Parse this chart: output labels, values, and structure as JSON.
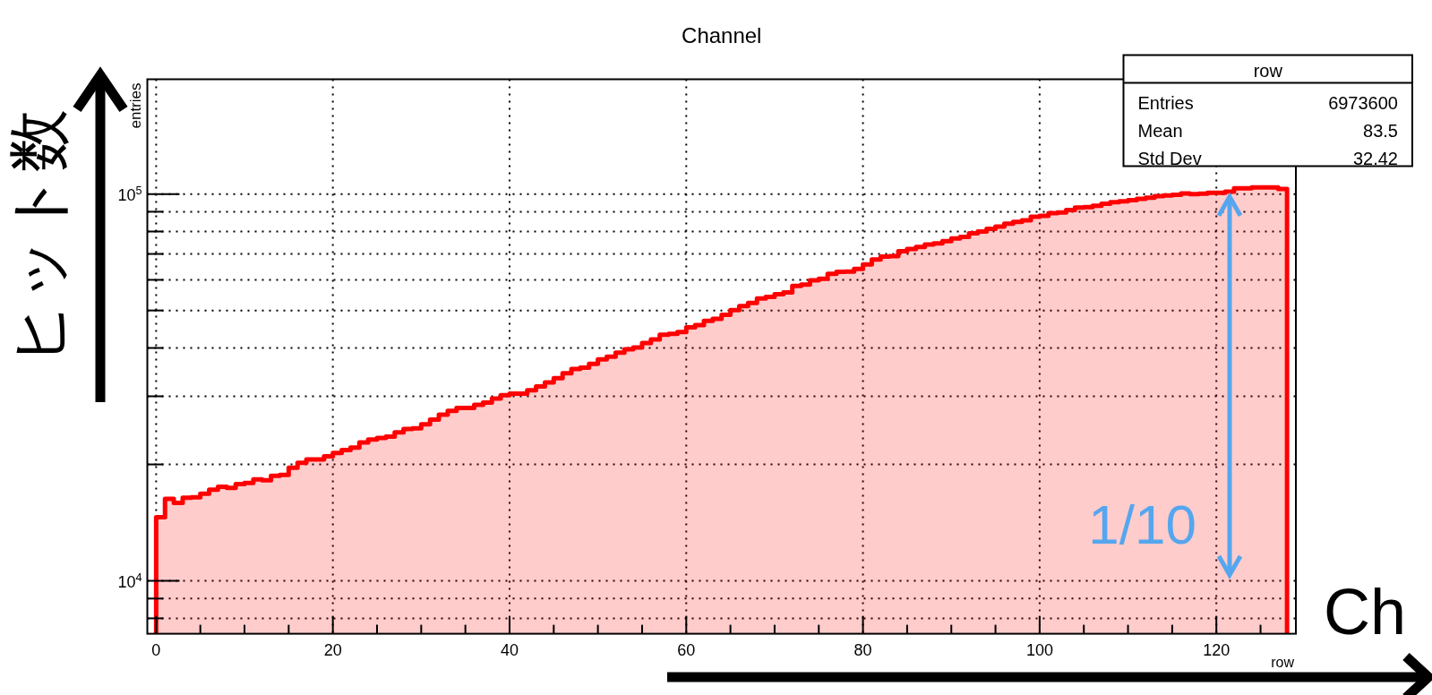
{
  "chart_data": {
    "type": "histogram",
    "title": "Channel",
    "xlabel": "row",
    "ylabel": "entries",
    "color": "#ff0000",
    "log": true,
    "grid": true,
    "bins": [
      0,
      1,
      2,
      3,
      4,
      5,
      6,
      7,
      8,
      9,
      10,
      11,
      12,
      13,
      14,
      15,
      16,
      17,
      18,
      19,
      20,
      21,
      22,
      23,
      24,
      25,
      26,
      27,
      28,
      29,
      30,
      31,
      32,
      33,
      34,
      35,
      36,
      37,
      38,
      39,
      40,
      41,
      42,
      43,
      44,
      45,
      46,
      47,
      48,
      49,
      50,
      51,
      52,
      53,
      54,
      55,
      56,
      57,
      58,
      59,
      60,
      61,
      62,
      63,
      64,
      65,
      66,
      67,
      68,
      69,
      70,
      71,
      72,
      73,
      74,
      75,
      76,
      77,
      78,
      79,
      80,
      81,
      82,
      83,
      84,
      85,
      86,
      87,
      88,
      89,
      90,
      91,
      92,
      93,
      94,
      95,
      96,
      97,
      98,
      99,
      100,
      101,
      102,
      103,
      104,
      105,
      106,
      107,
      108,
      109,
      110,
      111,
      112,
      113,
      114,
      115,
      116,
      117,
      118,
      119,
      120,
      121,
      122,
      123,
      124,
      125,
      126,
      127,
      128
    ],
    "values": [
      14600,
      16300,
      15900,
      16400,
      16450,
      16800,
      17200,
      17500,
      17400,
      17800,
      17900,
      18300,
      18200,
      18700,
      18800,
      19600,
      20200,
      20600,
      20600,
      21000,
      21400,
      21800,
      22100,
      22800,
      23200,
      23400,
      23600,
      24200,
      24700,
      24800,
      25400,
      26100,
      26900,
      27500,
      28000,
      28000,
      28500,
      28900,
      29600,
      30200,
      30500,
      30500,
      31100,
      31800,
      32600,
      33400,
      34400,
      35300,
      35600,
      36400,
      37400,
      38000,
      38900,
      39700,
      40100,
      41200,
      42100,
      43300,
      43500,
      44000,
      45200,
      45800,
      47000,
      47600,
      48700,
      50100,
      51300,
      52300,
      53700,
      54200,
      55100,
      55700,
      57900,
      58300,
      59800,
      60400,
      62200,
      62900,
      63000,
      64000,
      65800,
      67700,
      68900,
      69100,
      71100,
      72100,
      73000,
      74000,
      74500,
      75500,
      76800,
      77500,
      79100,
      80000,
      81300,
      82400,
      83800,
      84700,
      85500,
      87300,
      87800,
      89200,
      89600,
      90900,
      92300,
      92500,
      93200,
      94400,
      95200,
      95800,
      96400,
      97200,
      97800,
      98800,
      99200,
      99600,
      100400,
      100000,
      100200,
      100800,
      100800,
      101400,
      103400,
      103400,
      104000,
      104000,
      104000,
      103000
    ],
    "xlim": [
      -1,
      129
    ],
    "ylim": [
      7300,
      198000
    ],
    "xticks": [
      0,
      {
        "value": 5,
        "label": null
      },
      {
        "value": 10,
        "label": null
      },
      {
        "value": 15,
        "label": null
      },
      20,
      {
        "value": 25,
        "label": null
      },
      {
        "value": 30,
        "label": null
      },
      {
        "value": 35,
        "label": null
      },
      40,
      {
        "value": 45,
        "label": null
      },
      {
        "value": 50,
        "label": null
      },
      {
        "value": 55,
        "label": null
      },
      60,
      {
        "value": 65,
        "label": null
      },
      {
        "value": 70,
        "label": null
      },
      {
        "value": 75,
        "label": null
      },
      80,
      {
        "value": 85,
        "label": null
      },
      {
        "value": 90,
        "label": null
      },
      {
        "value": 95,
        "label": null
      },
      100,
      {
        "value": 105,
        "label": null
      },
      {
        "value": 110,
        "label": null
      },
      {
        "value": 115,
        "label": null
      },
      120,
      {
        "value": 125,
        "label": null
      }
    ],
    "yticks": [
      {
        "value": 8000,
        "label": null
      },
      {
        "value": 9000,
        "label": null
      },
      {
        "value": 10000,
        "label": "10$^{4}$"
      },
      {
        "value": 20000,
        "label": null
      },
      {
        "value": 30000,
        "label": null
      },
      {
        "value": 40000,
        "label": null
      },
      {
        "value": 50000,
        "label": null
      },
      {
        "value": 60000,
        "label": null
      },
      {
        "value": 70000,
        "label": null
      },
      {
        "value": 80000,
        "label": null
      },
      {
        "value": 90000,
        "label": null
      },
      {
        "value": 100000,
        "label": "10$^{5}$"
      }
    ],
    "annotations": [
      {
        "text": "1/10",
        "x": 121.5,
        "y": 100000
      },
      "ヒット数",
      "Ch",
      "row",
      "Entries",
      "6973600",
      "Mean",
      "83.5",
      "Std Dev",
      "32.42"
    ]
  }
}
